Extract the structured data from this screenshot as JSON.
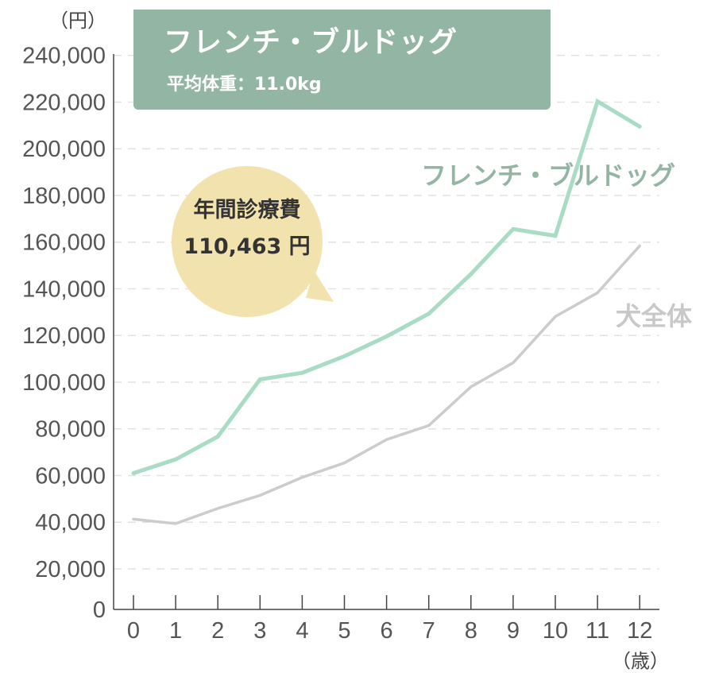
{
  "title_box": {
    "title": "フレンチ・ブルドッグ",
    "subtitle": "平均体重：11.0kg"
  },
  "callout": {
    "label": "年間診療費",
    "value": "110,463 円"
  },
  "colors": {
    "breed_line": "#a8dcc4",
    "breed_label": "#93b5a3",
    "all_line": "#cccccc",
    "title_bg": "#93b5a3",
    "callout_bg": "#f2e2ad"
  },
  "chart_data": {
    "type": "line",
    "xlabel": "（歳）",
    "ylabel": "（円）",
    "x": [
      0,
      1,
      2,
      3,
      4,
      5,
      6,
      7,
      8,
      9,
      10,
      11,
      12
    ],
    "ylim": [
      0,
      240000
    ],
    "yticks": [
      "0",
      "20,000",
      "40,000",
      "60,000",
      "80,000",
      "100,000",
      "120,000",
      "140,000",
      "160,000",
      "180,000",
      "200,000",
      "220,000",
      "240,000"
    ],
    "grid": true,
    "series": [
      {
        "name": "フレンチ・ブルドッグ",
        "values": [
          61000,
          66900,
          76700,
          101200,
          104000,
          111100,
          119600,
          129300,
          146300,
          165600,
          162700,
          220300,
          209500
        ]
      },
      {
        "name": "犬全体",
        "values": [
          41300,
          39400,
          45900,
          51500,
          59200,
          65400,
          75400,
          81400,
          98000,
          108300,
          128100,
          138300,
          158400
        ]
      }
    ]
  }
}
